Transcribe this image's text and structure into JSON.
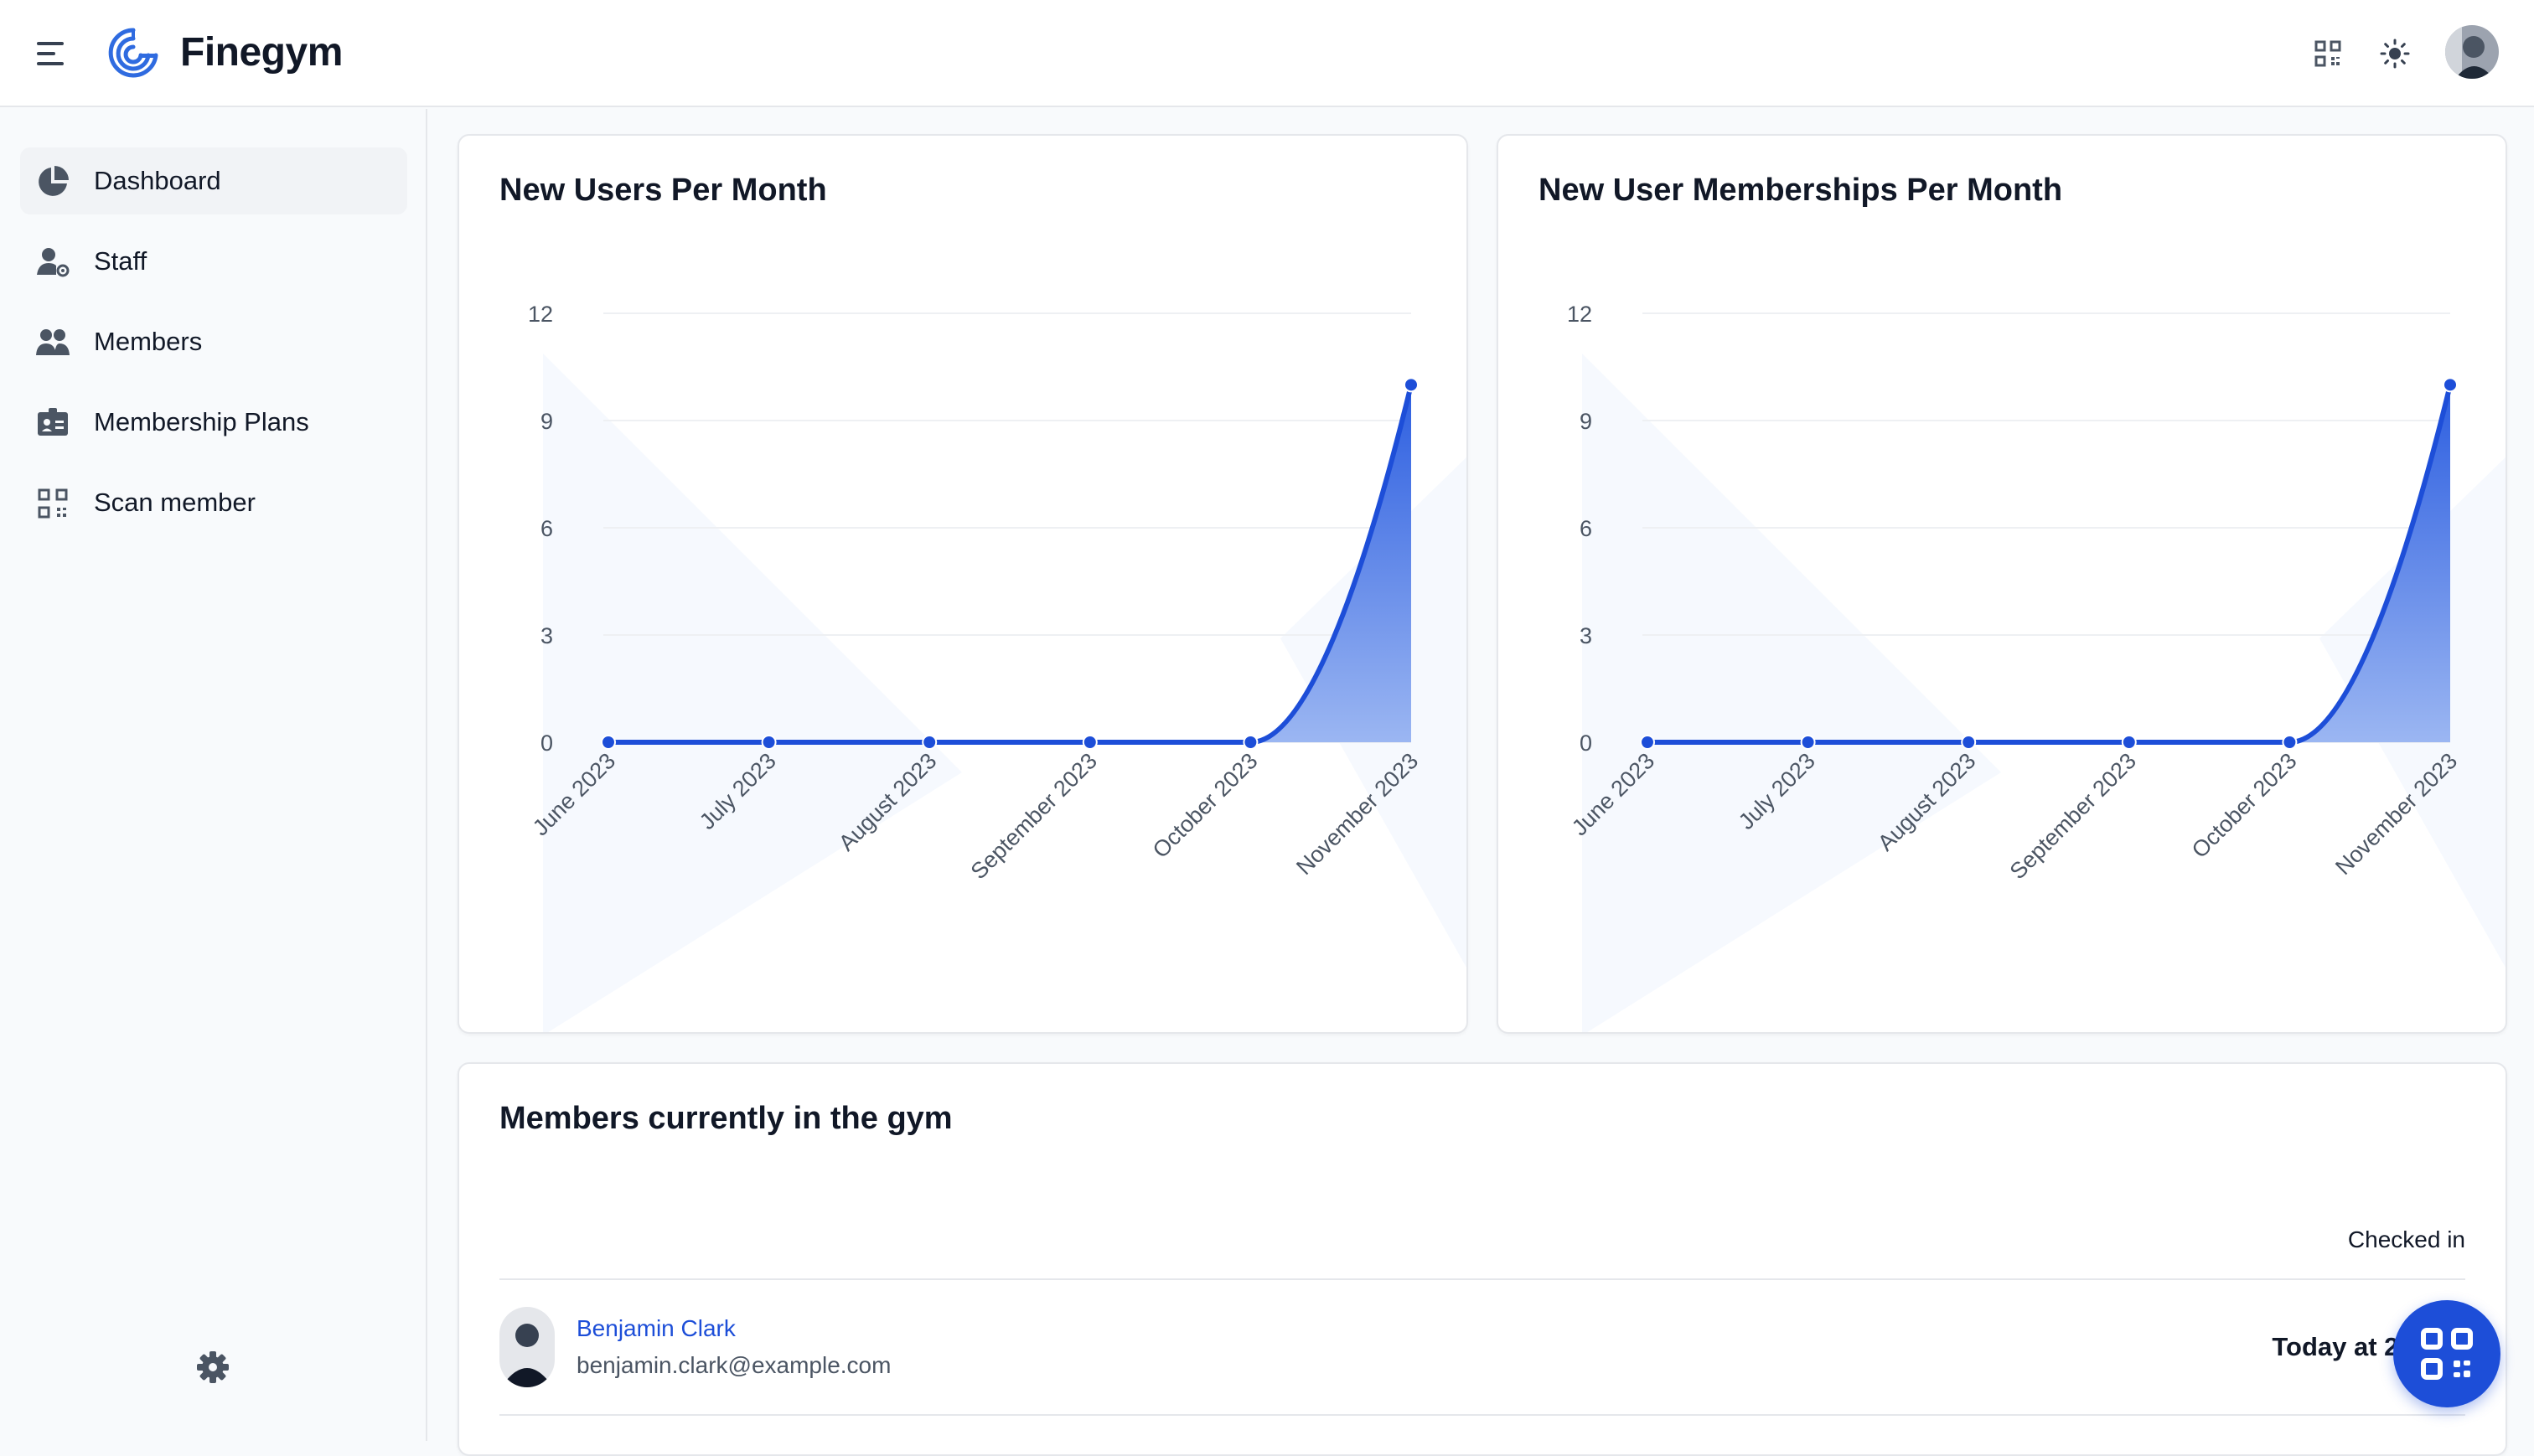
{
  "app": {
    "name": "Finegym"
  },
  "colors": {
    "accent": "#1d4ed8",
    "area_top": "#2c5ee0",
    "area_bottom": "#9bb6f2"
  },
  "header": {
    "icons": [
      "qr-code-icon",
      "sun-icon",
      "user-avatar"
    ]
  },
  "sidebar": {
    "items": [
      {
        "label": "Dashboard",
        "icon": "pie-chart-icon",
        "active": true
      },
      {
        "label": "Staff",
        "icon": "user-gear-icon",
        "active": false
      },
      {
        "label": "Members",
        "icon": "users-icon",
        "active": false
      },
      {
        "label": "Membership Plans",
        "icon": "id-card-icon",
        "active": false
      },
      {
        "label": "Scan member",
        "icon": "qr-code-icon",
        "active": false
      }
    ],
    "settings_icon": "gear-icon"
  },
  "cards": {
    "users_title": "New Users Per Month",
    "memberships_title": "New User Memberships Per Month"
  },
  "chart_data": [
    {
      "type": "area",
      "title": "New Users Per Month",
      "categories": [
        "June 2023",
        "July 2023",
        "August 2023",
        "September 2023",
        "October 2023",
        "November 2023"
      ],
      "values": [
        0,
        0,
        0,
        0,
        0,
        10
      ],
      "y_ticks": [
        0,
        3,
        6,
        9,
        12
      ],
      "ylim": [
        0,
        12
      ],
      "grid": true
    },
    {
      "type": "area",
      "title": "New User Memberships Per Month",
      "categories": [
        "June 2023",
        "July 2023",
        "August 2023",
        "September 2023",
        "October 2023",
        "November 2023"
      ],
      "values": [
        0,
        0,
        0,
        0,
        0,
        10
      ],
      "y_ticks": [
        0,
        3,
        6,
        9,
        12
      ],
      "ylim": [
        0,
        12
      ],
      "grid": true
    }
  ],
  "members_in_gym": {
    "title": "Members currently in the gym",
    "column_header": "Checked in",
    "rows": [
      {
        "name": "Benjamin Clark",
        "email": "benjamin.clark@example.com",
        "checked_in": "Today at 2:4"
      }
    ]
  },
  "fab_icon": "qr-code-icon"
}
